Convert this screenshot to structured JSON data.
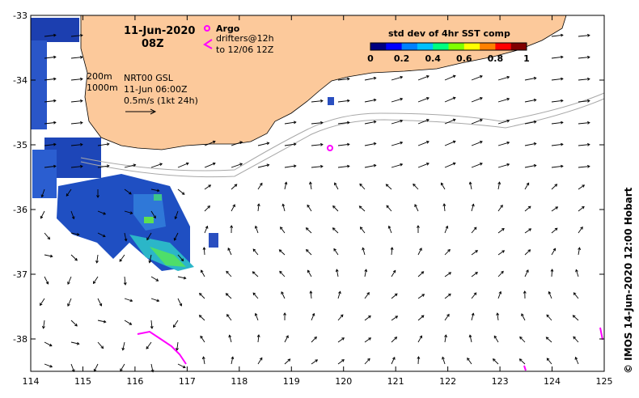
{
  "header": {
    "date": "11-Jun-2020",
    "hour": "08Z"
  },
  "legend": {
    "argo_label": "Argo",
    "drifters_line1": "drifters@12h",
    "drifters_line2": "to 12/06 12Z",
    "isobath_200": "200m",
    "isobath_1000": "1000m",
    "current_source": "NRT00 GSL",
    "current_time": "11-Jun 06:00Z",
    "scale_text": "0.5m/s (1kt 24h)"
  },
  "colorbar": {
    "title": "std dev of 4hr SST comp",
    "ticks": [
      "0",
      "0.2",
      "0.4",
      "0.6",
      "0.8",
      "1"
    ],
    "colors": [
      "#000080",
      "#0000ff",
      "#0080ff",
      "#00c0ff",
      "#00ff80",
      "#80ff00",
      "#ffff00",
      "#ff8000",
      "#ff0000",
      "#800000"
    ]
  },
  "credit": "© IMOS 14-Jun-2020 12:00 Hobart",
  "axes": {
    "x_ticks": [
      "114",
      "115",
      "116",
      "117",
      "118",
      "119",
      "120",
      "121",
      "122",
      "123",
      "124",
      "125"
    ],
    "y_ticks": [
      "-33",
      "-34",
      "-35",
      "-36",
      "-37",
      "-38"
    ],
    "x_range": [
      114,
      125
    ],
    "y_range": [
      -38.5,
      -33
    ]
  },
  "colors": {
    "land": "#fcc99b",
    "argo": "#ff00ff",
    "drifter": "#ff00ff",
    "isobath": "#a8a8a8"
  },
  "argo_float": {
    "lon": 119.75,
    "lat": -35.05
  }
}
